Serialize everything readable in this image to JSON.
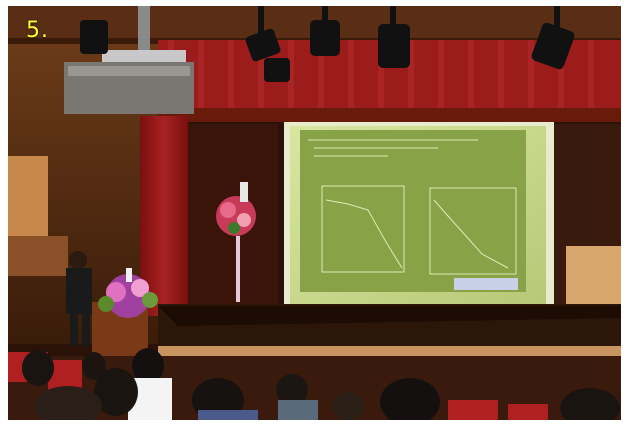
{
  "photo_label": "5.",
  "colors": {
    "frame": "#ffffff",
    "label": "#ffff2e",
    "curtain": "#9c1c1c",
    "screen": "#c6d88a",
    "slide": "#88a248",
    "stage": "#2c160a",
    "wall": "#d9a66e"
  },
  "icons": [
    "projector-icon",
    "stage-light-icon",
    "flower-arrangement-icon"
  ]
}
